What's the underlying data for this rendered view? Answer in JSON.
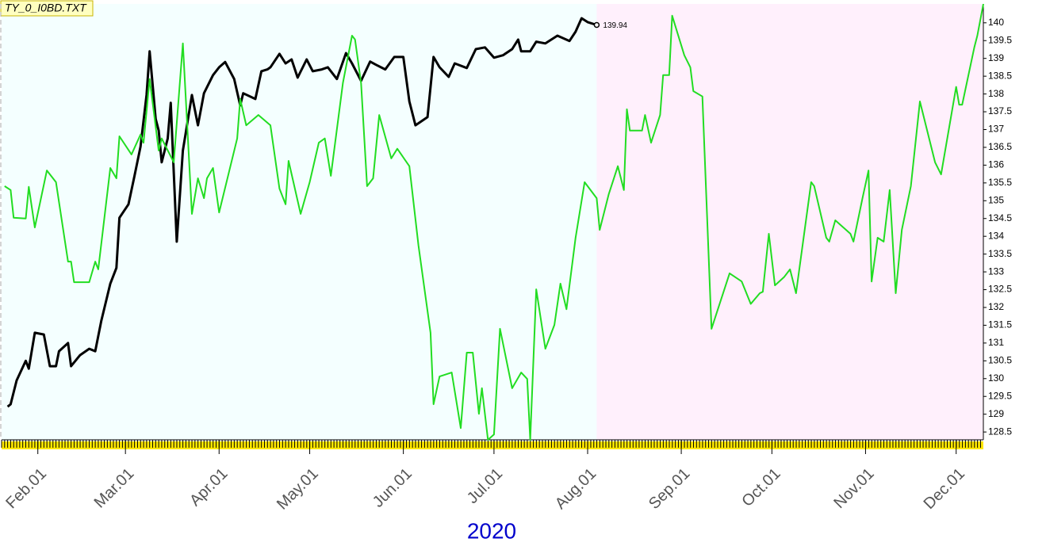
{
  "chart_data": {
    "type": "line",
    "title": "TY_0_I0BD.TXT",
    "xlabel": "2020",
    "xlim": [
      "2020-01-20",
      "2020-12-10"
    ],
    "ylim": [
      128.28,
      140.53
    ],
    "xticks": [
      {
        "value": "2020-02-01",
        "label": "Feb.01"
      },
      {
        "value": "2020-03-01",
        "label": "Mar.01"
      },
      {
        "value": "2020-04-01",
        "label": "Apr.01"
      },
      {
        "value": "2020-05-01",
        "label": "May.01"
      },
      {
        "value": "2020-06-01",
        "label": "Jun.01"
      },
      {
        "value": "2020-07-01",
        "label": "Jul.01"
      },
      {
        "value": "2020-08-01",
        "label": "Aug.01"
      },
      {
        "value": "2020-09-01",
        "label": "Sep.01"
      },
      {
        "value": "2020-10-01",
        "label": "Oct.01"
      },
      {
        "value": "2020-11-01",
        "label": "Nov.01"
      },
      {
        "value": "2020-12-01",
        "label": "Dec.01"
      }
    ],
    "yticks": [
      128.5,
      129,
      129.5,
      130,
      130.5,
      131,
      131.5,
      132,
      132.5,
      133,
      133.5,
      134,
      134.5,
      135,
      135.5,
      136,
      136.5,
      137,
      137.5,
      138,
      138.5,
      139,
      139.5,
      140
    ],
    "past_color": "#f4ffff",
    "future_color": "#fff0fc",
    "series": [
      {
        "color": "#000000",
        "width": 3,
        "x": [
          "2020-01-22",
          "2020-01-23",
          "2020-01-25",
          "2020-01-28",
          "2020-01-29",
          "2020-01-31",
          "2020-02-03",
          "2020-02-05",
          "2020-02-07",
          "2020-02-08",
          "2020-02-11",
          "2020-02-12",
          "2020-02-15",
          "2020-02-18",
          "2020-02-20",
          "2020-02-22",
          "2020-02-25",
          "2020-02-27",
          "2020-02-28",
          "2020-03-02",
          "2020-03-04",
          "2020-03-06",
          "2020-03-08",
          "2020-03-09",
          "2020-03-11",
          "2020-03-12",
          "2020-03-13",
          "2020-03-15",
          "2020-03-16",
          "2020-03-18",
          "2020-03-20",
          "2020-03-23",
          "2020-03-25",
          "2020-03-27",
          "2020-03-30",
          "2020-04-01",
          "2020-04-03",
          "2020-04-06",
          "2020-04-08",
          "2020-04-09",
          "2020-04-13",
          "2020-04-15",
          "2020-04-17",
          "2020-04-18",
          "2020-04-21",
          "2020-04-23",
          "2020-04-25",
          "2020-04-27",
          "2020-04-30",
          "2020-05-02",
          "2020-05-05",
          "2020-05-07",
          "2020-05-10",
          "2020-05-13",
          "2020-05-15",
          "2020-05-18",
          "2020-05-21",
          "2020-05-23",
          "2020-05-26",
          "2020-05-29",
          "2020-06-01",
          "2020-06-03",
          "2020-06-05",
          "2020-06-09",
          "2020-06-11",
          "2020-06-13",
          "2020-06-16",
          "2020-06-18",
          "2020-06-22",
          "2020-06-25",
          "2020-06-28",
          "2020-07-01",
          "2020-07-04",
          "2020-07-07",
          "2020-07-09",
          "2020-07-10",
          "2020-07-13",
          "2020-07-15",
          "2020-07-18",
          "2020-07-22",
          "2020-07-26",
          "2020-07-28",
          "2020-07-30",
          "2020-08-01",
          "2020-08-04"
        ],
        "values": [
          129.21,
          129.28,
          129.95,
          130.5,
          130.28,
          131.29,
          131.24,
          130.35,
          130.35,
          130.77,
          131.0,
          130.35,
          130.66,
          130.84,
          130.77,
          131.62,
          132.67,
          133.11,
          134.52,
          134.9,
          135.7,
          136.52,
          137.97,
          139.2,
          137.3,
          136.97,
          136.08,
          136.75,
          137.75,
          133.85,
          136.41,
          137.97,
          137.12,
          138.02,
          138.53,
          138.75,
          138.9,
          138.42,
          137.68,
          138.02,
          137.86,
          138.64,
          138.69,
          138.75,
          139.13,
          138.86,
          138.97,
          138.46,
          138.97,
          138.64,
          138.69,
          138.75,
          138.42,
          139.15,
          138.86,
          138.37,
          138.91,
          138.82,
          138.69,
          139.04,
          139.04,
          137.79,
          137.12,
          137.35,
          139.04,
          138.75,
          138.48,
          138.86,
          138.73,
          139.26,
          139.31,
          139.02,
          139.09,
          139.26,
          139.53,
          139.2,
          139.2,
          139.47,
          139.42,
          139.64,
          139.49,
          139.75,
          140.13,
          140.02,
          139.94
        ],
        "label_last": true
      },
      {
        "color": "#22dd22",
        "width": 2,
        "x": [
          "2020-01-21",
          "2020-01-23",
          "2020-01-24",
          "2020-01-28",
          "2020-01-29",
          "2020-01-31",
          "2020-02-04",
          "2020-02-07",
          "2020-02-11",
          "2020-02-12",
          "2020-02-13",
          "2020-02-18",
          "2020-02-20",
          "2020-02-21",
          "2020-02-25",
          "2020-02-27",
          "2020-02-28",
          "2020-03-03",
          "2020-03-06",
          "2020-03-07",
          "2020-03-09",
          "2020-03-12",
          "2020-03-13",
          "2020-03-17",
          "2020-03-20",
          "2020-03-23",
          "2020-03-25",
          "2020-03-27",
          "2020-03-28",
          "2020-03-30",
          "2020-04-01",
          "2020-04-07",
          "2020-04-08",
          "2020-04-10",
          "2020-04-14",
          "2020-04-18",
          "2020-04-21",
          "2020-04-23",
          "2020-04-24",
          "2020-04-28",
          "2020-05-01",
          "2020-05-04",
          "2020-05-06",
          "2020-05-08",
          "2020-05-12",
          "2020-05-15",
          "2020-05-16",
          "2020-05-18",
          "2020-05-20",
          "2020-05-22",
          "2020-05-24",
          "2020-05-28",
          "2020-05-30",
          "2020-06-03",
          "2020-06-06",
          "2020-06-10",
          "2020-06-11",
          "2020-06-13",
          "2020-06-17",
          "2020-06-20",
          "2020-06-22",
          "2020-06-24",
          "2020-06-26",
          "2020-06-27",
          "2020-06-29",
          "2020-07-01",
          "2020-07-03",
          "2020-07-07",
          "2020-07-10",
          "2020-07-12",
          "2020-07-13",
          "2020-07-15",
          "2020-07-18",
          "2020-07-21",
          "2020-07-23",
          "2020-07-25",
          "2020-07-28",
          "2020-07-31",
          "2020-08-04",
          "2020-08-05",
          "2020-08-08",
          "2020-08-11",
          "2020-08-13",
          "2020-08-14",
          "2020-08-15",
          "2020-08-19",
          "2020-08-20",
          "2020-08-22",
          "2020-08-25",
          "2020-08-26",
          "2020-08-28",
          "2020-08-29",
          "2020-09-02",
          "2020-09-04",
          "2020-09-05",
          "2020-09-08",
          "2020-09-11",
          "2020-09-14",
          "2020-09-17",
          "2020-09-21",
          "2020-09-24",
          "2020-09-27",
          "2020-09-28",
          "2020-09-30",
          "2020-10-02",
          "2020-10-05",
          "2020-10-07",
          "2020-10-09",
          "2020-10-14",
          "2020-10-15",
          "2020-10-19",
          "2020-10-20",
          "2020-10-22",
          "2020-10-27",
          "2020-10-28",
          "2020-10-31",
          "2020-11-02",
          "2020-11-03",
          "2020-11-05",
          "2020-11-07",
          "2020-11-09",
          "2020-11-11",
          "2020-11-13",
          "2020-11-16",
          "2020-11-19",
          "2020-11-24",
          "2020-11-26",
          "2020-12-01",
          "2020-12-02",
          "2020-12-03",
          "2020-12-07",
          "2020-12-08",
          "2020-12-10"
        ],
        "values": [
          135.41,
          135.3,
          134.52,
          134.5,
          135.39,
          134.25,
          135.85,
          135.52,
          133.29,
          133.29,
          132.71,
          132.71,
          133.29,
          133.07,
          135.92,
          135.63,
          136.81,
          136.3,
          136.86,
          136.63,
          138.42,
          136.41,
          136.75,
          136.08,
          139.42,
          134.63,
          135.63,
          135.07,
          135.63,
          135.92,
          134.67,
          136.75,
          137.86,
          137.12,
          137.41,
          137.12,
          135.34,
          134.9,
          136.12,
          134.63,
          135.52,
          136.63,
          136.75,
          135.7,
          138.31,
          139.64,
          139.53,
          138.31,
          135.41,
          135.63,
          137.41,
          136.19,
          136.46,
          135.97,
          133.74,
          131.29,
          129.28,
          130.06,
          130.17,
          128.61,
          130.73,
          130.73,
          129.01,
          129.73,
          128.28,
          128.43,
          131.4,
          129.73,
          130.17,
          129.99,
          128.28,
          132.51,
          130.84,
          131.51,
          132.67,
          131.95,
          133.96,
          135.52,
          135.07,
          134.18,
          135.19,
          135.97,
          135.3,
          137.57,
          136.97,
          136.97,
          137.41,
          136.63,
          137.41,
          138.53,
          138.53,
          140.2,
          139.09,
          138.75,
          138.08,
          137.93,
          131.4,
          132.18,
          132.96,
          132.73,
          132.1,
          132.4,
          132.44,
          134.07,
          132.62,
          132.85,
          133.07,
          132.4,
          135.52,
          135.41,
          133.96,
          133.85,
          134.45,
          134.07,
          133.85,
          135.07,
          135.85,
          132.73,
          133.96,
          133.85,
          135.3,
          132.4,
          134.18,
          135.41,
          137.79,
          136.08,
          135.74,
          138.2,
          137.7,
          137.7,
          139.31,
          139.64,
          140.53
        ]
      }
    ]
  }
}
